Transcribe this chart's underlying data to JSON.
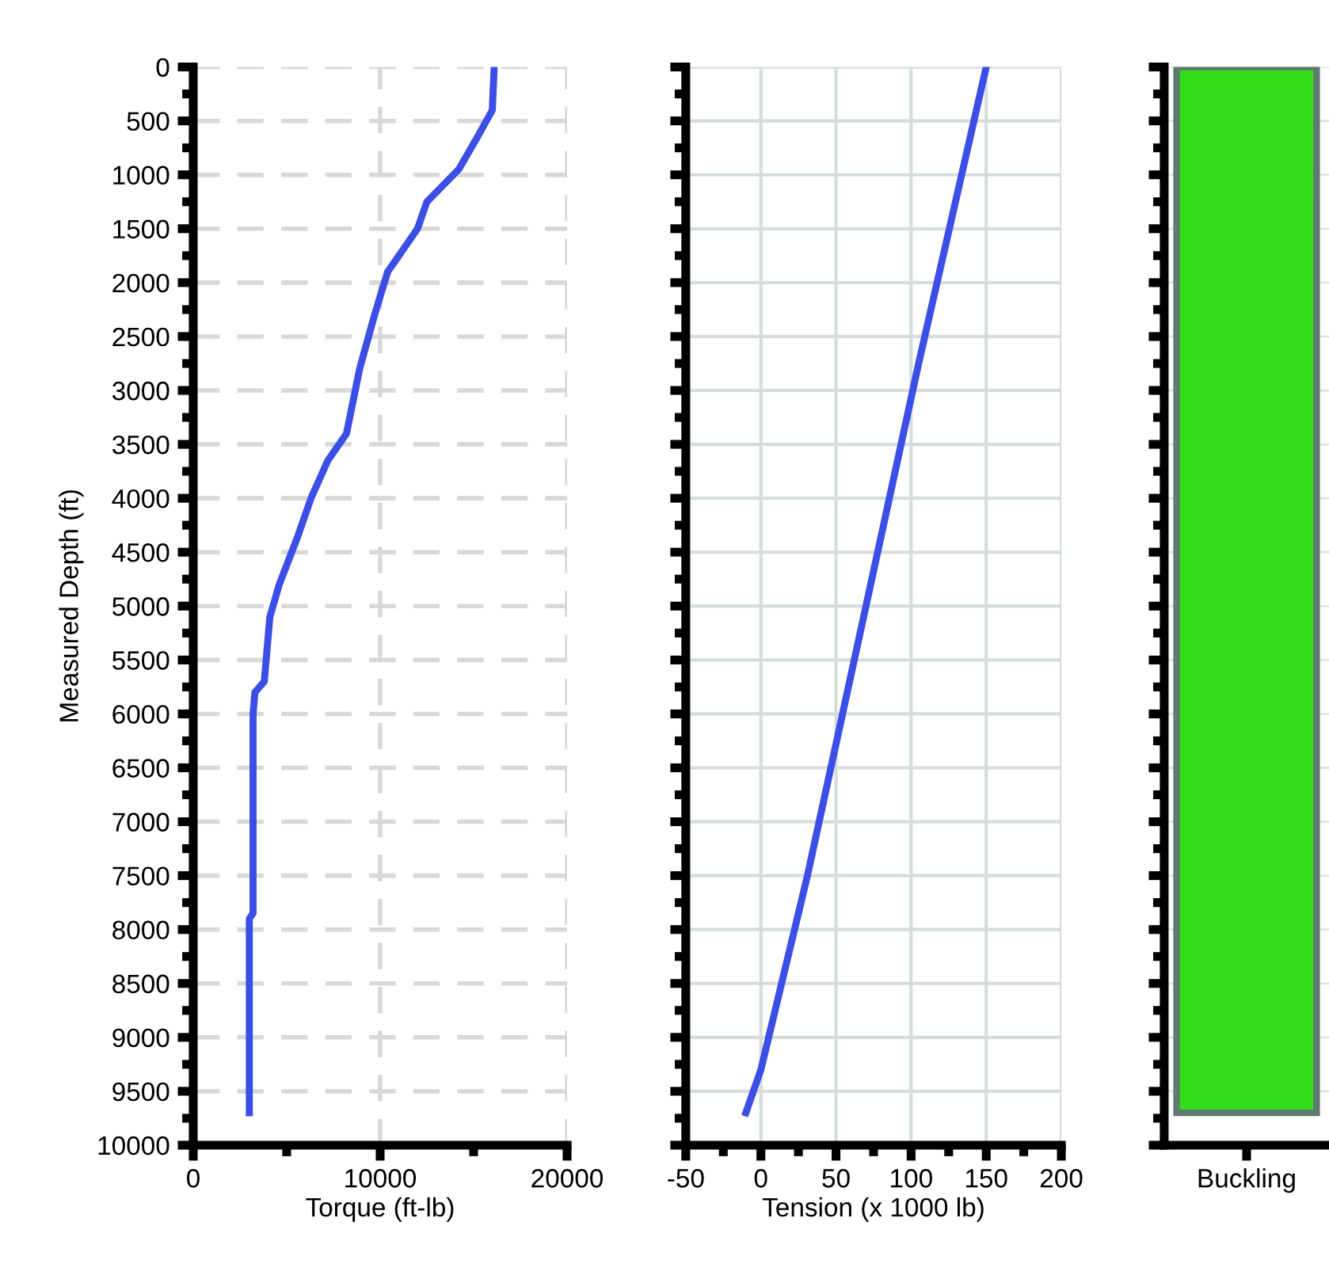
{
  "chart_data": [
    {
      "type": "line",
      "orientation": "horizontal",
      "xlabel": "Torque (ft-lb)",
      "ylabel": "Measured Depth (ft)",
      "xlim": [
        0,
        20000
      ],
      "xticks": [
        0,
        10000,
        20000
      ],
      "ylim": [
        10000,
        0
      ],
      "yticks": [
        0,
        500,
        1000,
        1500,
        2000,
        2500,
        3000,
        3500,
        4000,
        4500,
        5000,
        5500,
        6000,
        6500,
        7000,
        7500,
        8000,
        8500,
        9000,
        9500,
        10000
      ],
      "grid": true,
      "line_style": "solid",
      "series": [
        {
          "color": "#3b4fe6",
          "values": [
            16100,
            16000,
            15200,
            14200,
            12500,
            12000,
            10400,
            9700,
            8900,
            8200,
            7200,
            6300,
            5600,
            4600,
            4100,
            3800,
            3300,
            3200,
            3200,
            3200,
            3000,
            3000
          ],
          "x": [
            0,
            400,
            650,
            950,
            1250,
            1500,
            1900,
            2300,
            2800,
            3400,
            3650,
            4000,
            4350,
            4800,
            5100,
            5700,
            5800,
            6000,
            6550,
            7850,
            7900,
            9700
          ]
        }
      ]
    },
    {
      "type": "line",
      "orientation": "horizontal",
      "xlabel": "Tension (x 1000 lb)",
      "xlim": [
        -50,
        200
      ],
      "xticks": [
        -50,
        0,
        50,
        100,
        150,
        200
      ],
      "ylim": [
        10000,
        0
      ],
      "yticks": [
        0,
        500,
        1000,
        1500,
        2000,
        2500,
        3000,
        3500,
        4000,
        4500,
        5000,
        5500,
        6000,
        6500,
        7000,
        7500,
        8000,
        8500,
        9000,
        9500,
        10000
      ],
      "tick_labels": "x",
      "grid": true,
      "line_style": "solid",
      "series": [
        {
          "color": "#3b4fe6",
          "values": [
            150,
            105,
            31,
            0,
            -10
          ],
          "x": [
            0,
            2750,
            7500,
            9300,
            9700
          ]
        }
      ]
    },
    {
      "type": "bar",
      "categories": [
        "Buckling"
      ],
      "values": [
        9700
      ],
      "color": "#33dd1c",
      "ylim": [
        10000,
        0
      ],
      "yticks": [
        0,
        500,
        1000,
        1500,
        2000,
        2500,
        3000,
        3500,
        4000,
        4500,
        5000,
        5500,
        6000,
        6500,
        7000,
        7500,
        8000,
        8500,
        9000,
        9500,
        10000
      ],
      "tick_labels": "x",
      "grid": "y"
    }
  ]
}
